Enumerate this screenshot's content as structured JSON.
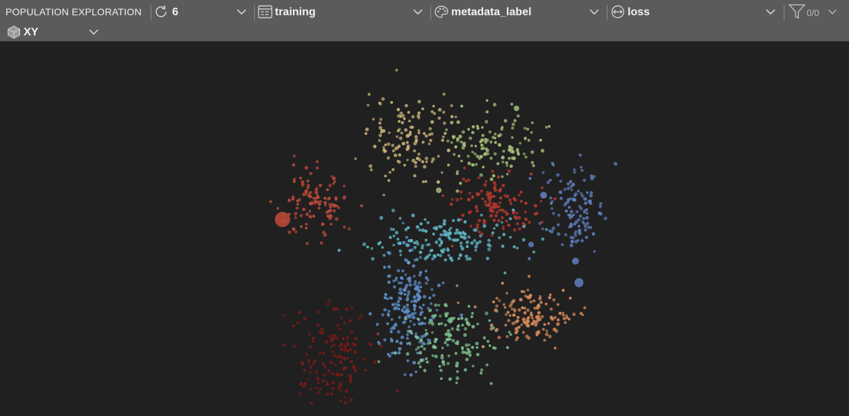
{
  "toolbar": {
    "title": "POPULATION EXPLORATION",
    "refresh_value": "6",
    "dataset": "training",
    "color_by": "metadata_label",
    "size_by": "loss",
    "filter_count": "0/0",
    "view_mode": "XY"
  },
  "colors": {
    "toolbar_bg": "#5b5b5b",
    "canvas_bg": "#202020",
    "text": "#f2f2f2"
  },
  "clusters": [
    {
      "color": "#c9b27a"
    },
    {
      "color": "#a6c07a"
    },
    {
      "color": "#c24b3a"
    },
    {
      "color": "#b8382e"
    },
    {
      "color": "#5f7fc0"
    },
    {
      "color": "#5fb6c4"
    },
    {
      "color": "#5d8fc8"
    },
    {
      "color": "#7fbf8f"
    },
    {
      "color": "#d88a5a"
    },
    {
      "color": "#7a1a17"
    }
  ]
}
